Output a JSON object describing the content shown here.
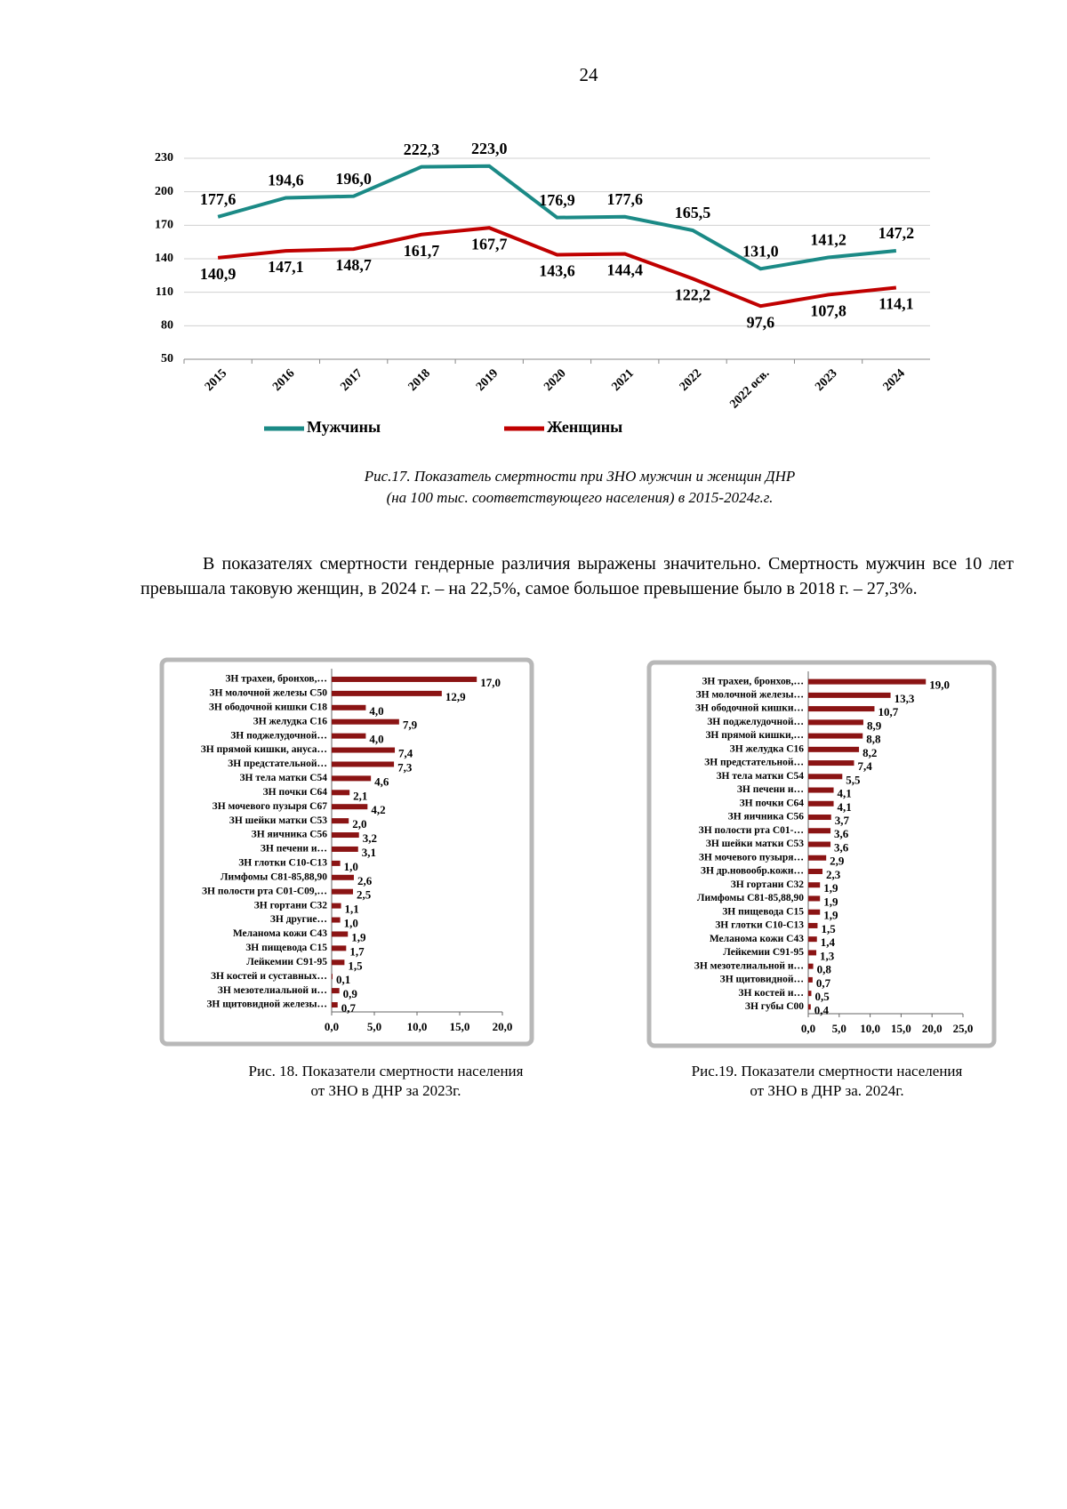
{
  "page_number": "24",
  "paragraph": "В показателях смертности гендерные различия выражены значительно. Смертность мужчин все 10 лет превышала таковую женщин, в 2024 г. – на 22,5%, самое большое превышение было в 2018 г. – 27,3%.",
  "chart_data": [
    {
      "type": "line",
      "categories": [
        "2015",
        "2016",
        "2017",
        "2018",
        "2019",
        "2020",
        "2021",
        "2022",
        "2022 осв.",
        "2023",
        "2024"
      ],
      "series": [
        {
          "name": "Мужчины",
          "color": "#1b8a86",
          "values": [
            177.6,
            194.6,
            196.0,
            222.3,
            223.0,
            176.9,
            177.6,
            165.5,
            131.0,
            141.2,
            147.2
          ],
          "value_labels": [
            "177,6",
            "194,6",
            "196,0",
            "222,3",
            "223,0",
            "176,9",
            "177,6",
            "165,5",
            "131,0",
            "141,2",
            "147,2"
          ]
        },
        {
          "name": "Женщины",
          "color": "#c00000",
          "values": [
            140.9,
            147.1,
            148.7,
            161.7,
            167.7,
            143.6,
            144.4,
            122.2,
            97.6,
            107.8,
            114.1
          ],
          "value_labels": [
            "140,9",
            "147,1",
            "148,7",
            "161,7",
            "167,7",
            "143,6",
            "144,4",
            "122,2",
            "97,6",
            "107,8",
            "114,1"
          ]
        }
      ],
      "ylim": [
        50,
        230
      ],
      "yticks": [
        50,
        80,
        110,
        140,
        170,
        200,
        230
      ],
      "grid": true,
      "legend": "bottom",
      "caption": [
        "Рис.17. Показатель смертности при ЗНО мужчин и женщин ДНР",
        "(на 100 тыс. соответствующего населения) в 2015-2024г.г."
      ]
    },
    {
      "type": "hbar",
      "color": "#8b1414",
      "categories": [
        "ЗН трахеи, бронхов,…",
        "ЗН молочной железы С50",
        "ЗН ободочной кишки С18",
        "ЗН желудка С16",
        "ЗН поджелудочной…",
        "ЗН прямой кишки, ануса…",
        "ЗН предстательной…",
        "ЗН тела матки С54",
        "ЗН почки С64",
        "ЗН мочевого пузыря С67",
        "ЗН шейки матки С53",
        "ЗН яичника С56",
        "ЗН печени и…",
        "ЗН глотки С10-С13",
        "Лимфомы С81-85,88,90",
        "ЗН полости рта С01-С09,…",
        "ЗН гортани С32",
        "ЗН другие…",
        "Меланома кожи С43",
        "ЗН пищевода С15",
        "Лейкемии С91-95",
        "ЗН костей и суставных…",
        "ЗН мезотелиальной и…",
        "ЗН щитовидной железы…"
      ],
      "values": [
        17.0,
        12.9,
        4.0,
        7.9,
        4.0,
        7.4,
        7.3,
        4.6,
        2.1,
        4.2,
        2.0,
        3.2,
        3.1,
        1.0,
        2.6,
        2.5,
        1.1,
        1.0,
        1.9,
        1.7,
        1.5,
        0.1,
        0.9,
        0.7
      ],
      "value_labels": [
        "17,0",
        "12,9",
        "4,0",
        "7,9",
        "4,0",
        "7,4",
        "7,3",
        "4,6",
        "2,1",
        "4,2",
        "2,0",
        "3,2",
        "3,1",
        "1,0",
        "2,6",
        "2,5",
        "1,1",
        "1,0",
        "1,9",
        "1,7",
        "1,5",
        "0,1",
        "0,9",
        "0,7"
      ],
      "xlim": [
        0,
        20
      ],
      "xticks": [
        {
          "value": 0,
          "label": "0,0"
        },
        {
          "value": 5,
          "label": "5,0"
        },
        {
          "value": 10,
          "label": "10,0"
        },
        {
          "value": 15,
          "label": "15,0"
        },
        {
          "value": 20,
          "label": "20,0"
        }
      ],
      "caption": [
        "Рис. 18. Показатели смертности населения",
        "от ЗНО в ДНР за 2023г."
      ]
    },
    {
      "type": "hbar",
      "color": "#8b1414",
      "categories": [
        "ЗН трахеи, бронхов,…",
        "ЗН молочной железы…",
        "ЗН ободочной кишки…",
        "ЗН поджелудочной…",
        "ЗН прямой кишки,…",
        "ЗН желудка С16",
        "ЗН предстательной…",
        "ЗН тела матки С54",
        "ЗН печени и…",
        "ЗН почки С64",
        "ЗН яичника С56",
        "ЗН полости рта С01-…",
        "ЗН шейки матки С53",
        "ЗН мочевого пузыря…",
        "ЗН др.новообр.кожи…",
        "ЗН гортани С32",
        "Лимфомы С81-85,88,90",
        "ЗН пищевода С15",
        "ЗН глотки С10-С13",
        "Меланома кожи С43",
        "Лейкемии С91-95",
        "ЗН мезотелиальной и…",
        "ЗН щитовидной…",
        "ЗН костей и…",
        "ЗН губы С00"
      ],
      "values": [
        19.0,
        13.3,
        10.7,
        8.9,
        8.8,
        8.2,
        7.4,
        5.5,
        4.1,
        4.1,
        3.7,
        3.6,
        3.6,
        2.9,
        2.3,
        1.9,
        1.9,
        1.9,
        1.5,
        1.4,
        1.3,
        0.8,
        0.7,
        0.5,
        0.4
      ],
      "value_labels": [
        "19,0",
        "13,3",
        "10,7",
        "8,9",
        "8,8",
        "8,2",
        "7,4",
        "5,5",
        "4,1",
        "4,1",
        "3,7",
        "3,6",
        "3,6",
        "2,9",
        "2,3",
        "1,9",
        "1,9",
        "1,9",
        "1,5",
        "1,4",
        "1,3",
        "0,8",
        "0,7",
        "0,5",
        "0,4"
      ],
      "xlim": [
        0,
        25
      ],
      "xticks": [
        {
          "value": 0,
          "label": "0,0"
        },
        {
          "value": 5,
          "label": "5,0"
        },
        {
          "value": 10,
          "label": "10,0"
        },
        {
          "value": 15,
          "label": "15,0"
        },
        {
          "value": 20,
          "label": "20,0"
        },
        {
          "value": 25,
          "label": "25,0"
        }
      ],
      "caption": [
        "Рис.19.  Показатели смертности населения",
        "от ЗНО в ДНР за. 2024г."
      ]
    }
  ]
}
